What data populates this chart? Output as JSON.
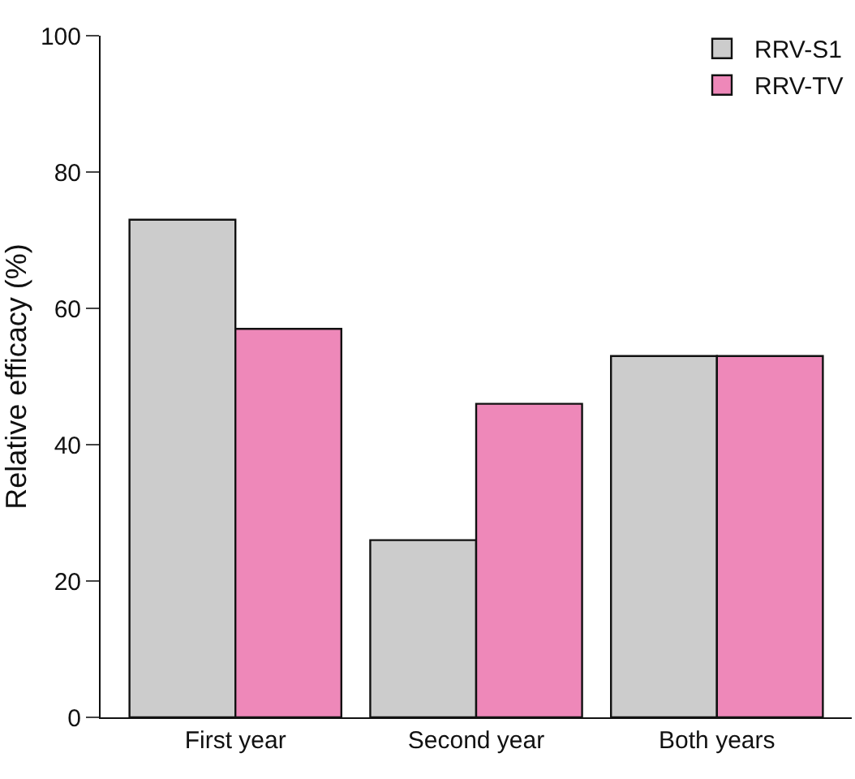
{
  "chart_data": {
    "type": "bar",
    "ylabel": "Relative efficacy (%)",
    "categories": [
      "First year",
      "Second year",
      "Both years"
    ],
    "series": [
      {
        "name": "RRV-S1",
        "color": "#cccccc",
        "values": [
          73,
          26,
          53
        ]
      },
      {
        "name": "RRV-TV",
        "color": "#ee88b9",
        "values": [
          57,
          46,
          53
        ]
      }
    ],
    "ylim": [
      0,
      100
    ],
    "yticks": [
      0,
      20,
      40,
      60,
      80,
      100
    ],
    "legend": "top right"
  }
}
